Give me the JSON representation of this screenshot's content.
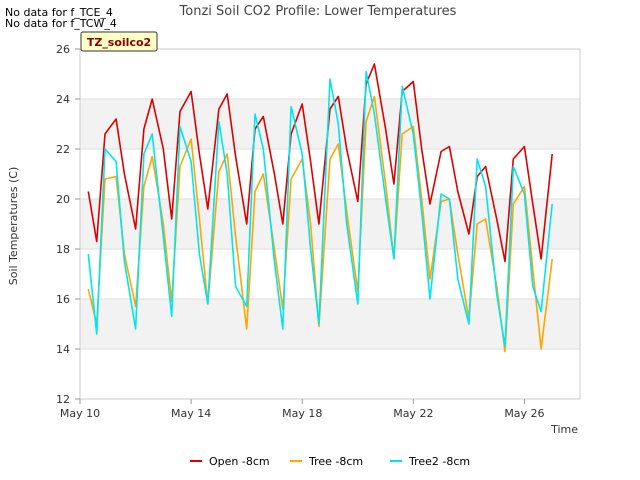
{
  "notes": [
    "No data for f_TCE_4",
    "No data for f_TCW_4"
  ],
  "badge": "TZ_soilco2",
  "chart_data": {
    "type": "line",
    "title": "Tonzi Soil CO2 Profile: Lower Temperatures",
    "xlabel": "Time",
    "ylabel": "Soil Temperatures (C)",
    "xlim": [
      0,
      18
    ],
    "ylim": [
      12,
      26
    ],
    "x_ticks": [
      {
        "x": 0,
        "label": "May 10"
      },
      {
        "x": 4,
        "label": "May 14"
      },
      {
        "x": 8,
        "label": "May 18"
      },
      {
        "x": 12,
        "label": "May 22"
      },
      {
        "x": 16,
        "label": "May 26"
      }
    ],
    "y_ticks": [
      12,
      14,
      16,
      18,
      20,
      22,
      24,
      26
    ],
    "grid": true,
    "legend_position": "bottom",
    "series": [
      {
        "name": "Open -8cm",
        "color": "#dd0000",
        "x": [
          0.3,
          0.6,
          0.9,
          1.3,
          1.6,
          2.0,
          2.3,
          2.6,
          3.0,
          3.3,
          3.6,
          4.0,
          4.3,
          4.6,
          5.0,
          5.3,
          5.6,
          6.0,
          6.3,
          6.6,
          7.0,
          7.3,
          7.6,
          8.0,
          8.3,
          8.6,
          9.0,
          9.3,
          9.6,
          10.0,
          10.3,
          10.6,
          11.0,
          11.3,
          11.6,
          12.0,
          12.3,
          12.6,
          13.0,
          13.3,
          13.6,
          14.0,
          14.3,
          14.6,
          15.0,
          15.3,
          15.6,
          16.0,
          16.3,
          16.6,
          17.0
        ],
        "y": [
          20.3,
          18.3,
          22.6,
          23.2,
          21.0,
          18.8,
          22.8,
          24.0,
          22.0,
          19.2,
          23.5,
          24.3,
          21.8,
          19.6,
          23.6,
          24.2,
          21.7,
          19.0,
          22.8,
          23.3,
          21.0,
          19.0,
          22.6,
          23.8,
          21.5,
          19.0,
          23.6,
          24.1,
          22.0,
          19.9,
          24.6,
          25.4,
          22.8,
          20.6,
          24.3,
          24.7,
          22.0,
          19.8,
          21.9,
          22.1,
          20.3,
          18.6,
          20.9,
          21.3,
          19.2,
          17.5,
          21.6,
          22.1,
          19.8,
          17.6,
          21.8
        ]
      },
      {
        "name": "Tree -8cm",
        "color": "#ffa500",
        "x": [
          0.3,
          0.6,
          0.9,
          1.3,
          1.6,
          2.0,
          2.3,
          2.6,
          3.0,
          3.3,
          3.6,
          4.0,
          4.3,
          4.6,
          5.0,
          5.3,
          5.6,
          6.0,
          6.3,
          6.6,
          7.0,
          7.3,
          7.6,
          8.0,
          8.3,
          8.6,
          9.0,
          9.3,
          9.6,
          10.0,
          10.3,
          10.6,
          11.0,
          11.3,
          11.6,
          12.0,
          12.3,
          12.6,
          13.0,
          13.3,
          13.6,
          14.0,
          14.3,
          14.6,
          15.0,
          15.3,
          15.6,
          16.0,
          16.3,
          16.6,
          17.0
        ],
        "y": [
          16.4,
          15.0,
          20.8,
          20.9,
          17.8,
          15.7,
          20.5,
          21.7,
          19.0,
          15.9,
          21.3,
          22.4,
          19.2,
          15.8,
          21.1,
          21.8,
          18.5,
          14.8,
          20.3,
          21.0,
          18.0,
          15.6,
          20.8,
          21.6,
          19.0,
          14.9,
          21.6,
          22.2,
          19.5,
          16.3,
          23.1,
          24.1,
          20.6,
          17.6,
          22.6,
          22.9,
          20.0,
          16.8,
          19.9,
          20.0,
          17.8,
          15.2,
          19.0,
          19.2,
          16.5,
          13.9,
          19.8,
          20.5,
          17.2,
          14.0,
          17.6
        ]
      },
      {
        "name": "Tree2 -8cm",
        "color": "#00e5ee",
        "x": [
          0.3,
          0.6,
          0.9,
          1.3,
          1.6,
          2.0,
          2.3,
          2.6,
          3.0,
          3.3,
          3.6,
          4.0,
          4.3,
          4.6,
          5.0,
          5.3,
          5.6,
          6.0,
          6.3,
          6.6,
          7.0,
          7.3,
          7.6,
          8.0,
          8.3,
          8.6,
          9.0,
          9.3,
          9.6,
          10.0,
          10.3,
          10.6,
          11.0,
          11.3,
          11.6,
          12.0,
          12.3,
          12.6,
          13.0,
          13.3,
          13.6,
          14.0,
          14.3,
          14.6,
          15.0,
          15.3,
          15.6,
          16.0,
          16.3,
          16.6,
          17.0
        ],
        "y": [
          17.8,
          14.6,
          22.0,
          21.5,
          17.5,
          14.8,
          21.8,
          22.6,
          18.5,
          15.3,
          22.9,
          21.5,
          17.8,
          15.8,
          23.1,
          21.0,
          16.5,
          15.7,
          23.4,
          22.0,
          17.5,
          14.8,
          23.7,
          21.8,
          18.0,
          15.0,
          24.8,
          23.0,
          19.0,
          15.8,
          25.1,
          23.4,
          20.0,
          17.6,
          24.5,
          22.6,
          19.5,
          16.0,
          20.2,
          20.0,
          16.8,
          15.0,
          21.6,
          20.5,
          16.2,
          14.1,
          21.3,
          20.2,
          16.5,
          15.5,
          19.8
        ]
      }
    ]
  }
}
